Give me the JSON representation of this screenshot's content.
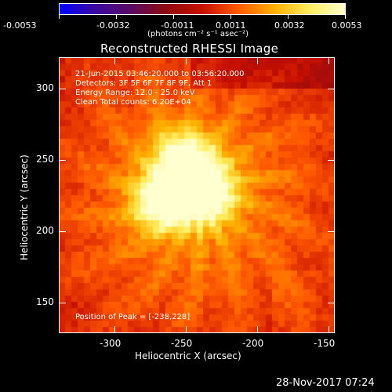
{
  "colorbar": {
    "ticks": [
      "-0.0053",
      "-0.0032",
      "-0.0011",
      "0.0011",
      "0.0032",
      "0.0053"
    ],
    "unit_label": "(photons cm⁻² s⁻¹ asec⁻²)",
    "range": [
      -0.0053,
      0.0053
    ],
    "colormap": [
      "#0000ff",
      "#3c0aa0",
      "#5a0a64",
      "#900a10",
      "#c81000",
      "#ff5a00",
      "#ffb000",
      "#ffee60",
      "#ffffd0"
    ]
  },
  "plot": {
    "title": "Reconstructed RHESSI Image",
    "annotations": {
      "time": "21-Jun-2015 03:46:20.000 to 03:56:20.000",
      "detectors": "Detectors: 3F 5F 6F 7F 8F 9F, Att 1",
      "energy": "Energy Range: 12.0 - 25.0 keV",
      "clean": "Clean     Total counts: 6.20E+04",
      "peak": "Position of Peak = [-238,228]"
    },
    "xlabel": "Heliocentric X (arcsec)",
    "ylabel": "Heliocentric Y (arcsec)",
    "xticks": [
      "-300",
      "-250",
      "-200",
      "-150"
    ],
    "yticks": [
      "150",
      "200",
      "250",
      "300"
    ],
    "xlim": [
      -340,
      -148
    ],
    "ylim": [
      130,
      322
    ],
    "sources": [
      {
        "x": -238,
        "y": 228,
        "peak": 1.0
      },
      {
        "x": -267,
        "y": 222,
        "peak": 0.92
      },
      {
        "x": -253,
        "y": 251,
        "peak": 0.82
      }
    ]
  },
  "footer": {
    "timestamp": "28-Nov-2017 07:24"
  }
}
